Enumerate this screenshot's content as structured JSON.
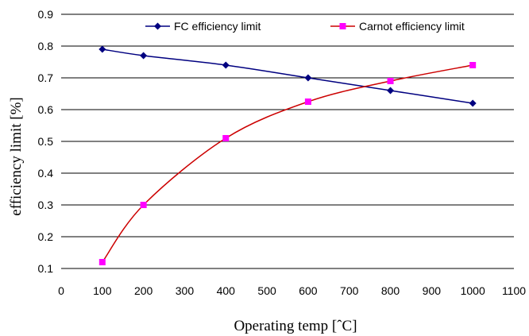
{
  "chart_data": {
    "type": "line",
    "title": "",
    "xlabel": "Operating temp [ˆC]",
    "ylabel": "efficiency  limit [%]",
    "xlim": [
      0,
      1100
    ],
    "ylim": [
      0.1,
      0.9
    ],
    "x_ticks": [
      "0",
      "100",
      "200",
      "300",
      "400",
      "500",
      "600",
      "700",
      "800",
      "900",
      "1000",
      "1100"
    ],
    "y_ticks": [
      "0.1",
      "0.2",
      "0.3",
      "0.4",
      "0.5",
      "0.6",
      "0.7",
      "0.8",
      "0.9"
    ],
    "grid": "horizontal",
    "legend_position": "top",
    "series": [
      {
        "name": "FC efficiency limit",
        "color": "#000080",
        "marker": "diamond",
        "x": [
          100,
          200,
          400,
          600,
          800,
          1000
        ],
        "values": [
          0.79,
          0.77,
          0.74,
          0.7,
          0.66,
          0.62
        ]
      },
      {
        "name": "Carnot efficiency limit",
        "color": "#ff00ff",
        "line_color": "#cc0000",
        "marker": "square",
        "x": [
          100,
          200,
          400,
          600,
          800,
          1000
        ],
        "values": [
          0.12,
          0.3,
          0.51,
          0.625,
          0.69,
          0.74
        ]
      }
    ]
  }
}
